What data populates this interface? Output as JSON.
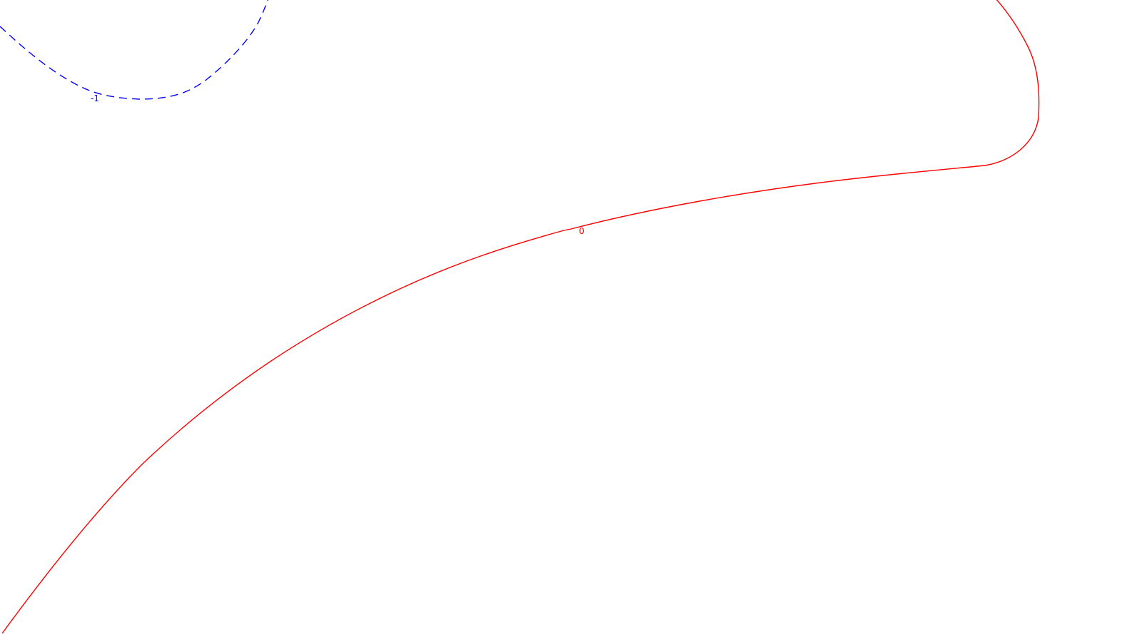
{
  "chart_data": {
    "type": "contour",
    "title": "",
    "xlabel": "",
    "ylabel": "",
    "grid": false,
    "legend": "none",
    "contours": [
      {
        "level": "-1",
        "label": "-1",
        "color": "#0000ff",
        "style": "dashed"
      },
      {
        "level": "0",
        "label": "0",
        "color": "#ff0000",
        "style": "solid"
      }
    ]
  }
}
